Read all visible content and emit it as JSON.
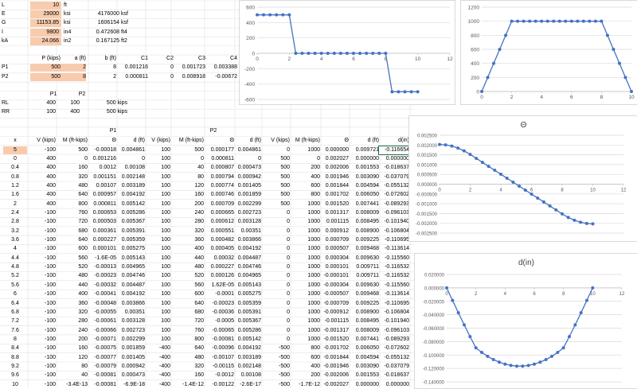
{
  "params": [
    {
      "label": "L",
      "value": "10",
      "unit": "ft",
      "v2": "",
      "u2": "",
      "hl": true
    },
    {
      "label": "E",
      "value": "29000",
      "unit": "ksi",
      "v2": "4176000",
      "u2": "ksf",
      "hl": true
    },
    {
      "label": "G",
      "value": "11153.85",
      "unit": "ksi",
      "v2": "1606154",
      "u2": "ksf",
      "hl": true
    },
    {
      "label": "I",
      "value": "9800",
      "unit": "in4",
      "v2": "0.472608",
      "u2": "ft4",
      "hl": true
    },
    {
      "label": "kA",
      "value": "24.066",
      "unit": "in2",
      "v2": "0.167125",
      "u2": "ft2",
      "hl": true
    }
  ],
  "loads": {
    "headers": [
      "P (kips)",
      "a (ft)",
      "b (ft)",
      "C1",
      "C2",
      "C3",
      "C4"
    ],
    "rows": [
      {
        "label": "P1",
        "cells": [
          "500",
          "2",
          "8",
          "0.001216",
          "0",
          "0.001723",
          "0.003388"
        ]
      },
      {
        "label": "P2",
        "cells": [
          "500",
          "8",
          "2",
          "0.000811",
          "0",
          "0.008918",
          "-0.00672"
        ]
      }
    ]
  },
  "reactions": {
    "headers": [
      "P1",
      "P2"
    ],
    "rows": [
      {
        "label": "RL",
        "cells": [
          "400",
          "100",
          "500 kips"
        ]
      },
      {
        "label": "RR",
        "cells": [
          "100",
          "400",
          "500 kips"
        ]
      }
    ]
  },
  "table": {
    "group_p1": "P1",
    "group_p2": "P2",
    "headers": [
      "x",
      "V (kips)",
      "M (ft-kips)",
      "Θ",
      "d (ft)",
      "V (kips)",
      "M (ft-kips)",
      "Θ",
      "d (ft)",
      "V (kips)",
      "M (ft-kips)",
      "Θ",
      "d (ft)",
      "d(in)"
    ],
    "rows": [
      [
        "5",
        "-100",
        "500",
        "-0.00018",
        "0.004861",
        "100",
        "500",
        "0.000177",
        "0.004861",
        "0",
        "1000",
        "0.000000",
        "0.009721",
        "-0.116654"
      ],
      [
        "0",
        "400",
        "0",
        "0.001216",
        "0",
        "100",
        "0",
        "0.000811",
        "0",
        "500",
        "0",
        "0.002027",
        "0.000000",
        "0.000000"
      ],
      [
        "0.4",
        "400",
        "160",
        "0.0012",
        "0.00108",
        "100",
        "40",
        "0.000807",
        "0.000473",
        "500",
        "200",
        "0.002006",
        "0.001553",
        "-0.018637"
      ],
      [
        "0.8",
        "400",
        "320",
        "0.001151",
        "0.002148",
        "100",
        "80",
        "0.000794",
        "0.000942",
        "500",
        "400",
        "0.001946",
        "0.003090",
        "-0.037079"
      ],
      [
        "1.2",
        "400",
        "480",
        "0.00107",
        "0.003189",
        "100",
        "120",
        "0.000774",
        "0.001405",
        "500",
        "600",
        "0.001844",
        "0.004594",
        "-0.055132"
      ],
      [
        "1.6",
        "400",
        "640",
        "0.000957",
        "0.004192",
        "100",
        "160",
        "0.000746",
        "0.001859",
        "500",
        "800",
        "0.001702",
        "0.006050",
        "-0.072602"
      ],
      [
        "2",
        "400",
        "800",
        "0.000811",
        "0.005142",
        "100",
        "200",
        "0.000709",
        "0.002299",
        "500",
        "1000",
        "0.001520",
        "0.007441",
        "-0.089293"
      ],
      [
        "2.4",
        "-100",
        "760",
        "0.000653",
        "0.005286",
        "100",
        "240",
        "0.000665",
        "0.002723",
        "0",
        "1000",
        "0.001317",
        "0.008009",
        "-0.096103"
      ],
      [
        "2.8",
        "-100",
        "720",
        "0.000503",
        "0.005367",
        "100",
        "280",
        "0.000612",
        "0.003128",
        "0",
        "1000",
        "0.001115",
        "0.008495",
        "-0.101940"
      ],
      [
        "3.2",
        "-100",
        "680",
        "0.000361",
        "0.005391",
        "100",
        "320",
        "0.000551",
        "0.00351",
        "0",
        "1000",
        "0.000912",
        "0.008900",
        "-0.106804"
      ],
      [
        "3.6",
        "-100",
        "640",
        "0.000227",
        "0.005359",
        "100",
        "360",
        "0.000482",
        "0.003866",
        "0",
        "1000",
        "0.000709",
        "0.009225",
        "-0.110695"
      ],
      [
        "4",
        "-100",
        "600",
        "0.000101",
        "0.005275",
        "100",
        "400",
        "0.000405",
        "0.004192",
        "0",
        "1000",
        "0.000507",
        "0.009468",
        "-0.113614"
      ],
      [
        "4.4",
        "-100",
        "560",
        "-1.6E-05",
        "0.005143",
        "100",
        "440",
        "0.00032",
        "0.004487",
        "0",
        "1000",
        "0.000304",
        "0.009630",
        "-0.115560"
      ],
      [
        "4.8",
        "-100",
        "520",
        "-0.00013",
        "0.004965",
        "100",
        "480",
        "0.000227",
        "0.004746",
        "0",
        "1000",
        "0.000101",
        "0.009711",
        "-0.116532"
      ],
      [
        "5.2",
        "-100",
        "480",
        "-0.00023",
        "0.004746",
        "100",
        "520",
        "0.000126",
        "0.004965",
        "0",
        "1000",
        "-0.000101",
        "0.009711",
        "-0.116532"
      ],
      [
        "5.6",
        "-100",
        "440",
        "-0.00032",
        "0.004487",
        "100",
        "560",
        "1.62E-05",
        "0.005143",
        "0",
        "1000",
        "-0.000304",
        "0.009630",
        "-0.115560"
      ],
      [
        "6",
        "-100",
        "400",
        "-0.00041",
        "0.004192",
        "100",
        "600",
        "-0.0001",
        "0.005275",
        "0",
        "1000",
        "-0.000507",
        "0.009468",
        "-0.113614"
      ],
      [
        "6.4",
        "-100",
        "360",
        "-0.00048",
        "0.003866",
        "100",
        "640",
        "-0.00023",
        "0.005359",
        "0",
        "1000",
        "-0.000709",
        "0.009225",
        "-0.110695"
      ],
      [
        "6.8",
        "-100",
        "320",
        "-0.00055",
        "0.00351",
        "100",
        "680",
        "-0.00036",
        "0.005391",
        "0",
        "1000",
        "-0.000912",
        "0.008900",
        "-0.106804"
      ],
      [
        "7.2",
        "-100",
        "280",
        "-0.00061",
        "0.003128",
        "100",
        "720",
        "-0.0005",
        "0.005367",
        "0",
        "1000",
        "-0.001115",
        "0.008495",
        "-0.101940"
      ],
      [
        "7.6",
        "-100",
        "240",
        "-0.00066",
        "0.002723",
        "100",
        "760",
        "-0.00065",
        "0.005286",
        "0",
        "1000",
        "-0.001317",
        "0.008009",
        "-0.096103"
      ],
      [
        "8",
        "-100",
        "200",
        "-0.00071",
        "0.002299",
        "100",
        "800",
        "-0.00081",
        "0.005142",
        "0",
        "1000",
        "-0.001520",
        "0.007441",
        "-0.089293"
      ],
      [
        "8.4",
        "-100",
        "160",
        "-0.00075",
        "0.001859",
        "-400",
        "640",
        "-0.00096",
        "0.004192",
        "-500",
        "800",
        "-0.001702",
        "0.006050",
        "-0.072602"
      ],
      [
        "8.8",
        "-100",
        "120",
        "-0.00077",
        "0.001405",
        "-400",
        "480",
        "-0.00107",
        "0.003189",
        "-500",
        "600",
        "-0.001844",
        "0.004594",
        "-0.055132"
      ],
      [
        "9.2",
        "-100",
        "80",
        "-0.00079",
        "0.000942",
        "-400",
        "320",
        "-0.00115",
        "0.002148",
        "-500",
        "400",
        "-0.001946",
        "0.003090",
        "-0.037079"
      ],
      [
        "9.6",
        "-100",
        "40",
        "-0.00081",
        "0.000473",
        "-400",
        "160",
        "-0.0012",
        "0.00108",
        "-500",
        "200",
        "-0.002006",
        "0.001553",
        "-0.018637"
      ],
      [
        "10",
        "-100",
        "-3.4E-13",
        "-0.00081",
        "-6.9E-18",
        "-400",
        "-1.4E-12",
        "-0.00122",
        "-2.6E-17",
        "-500",
        "-1.7E-12",
        "-0.002027",
        "0.000000",
        "0.000000"
      ]
    ]
  },
  "chart_data": [
    {
      "type": "scatter",
      "title": "",
      "series": [
        {
          "name": "",
          "x": [
            0,
            0.4,
            0.8,
            1.2,
            1.6,
            2,
            2.4,
            2.8,
            3.2,
            3.6,
            4,
            4.4,
            4.8,
            5.2,
            5.6,
            6,
            6.4,
            6.8,
            7.2,
            7.6,
            8,
            8.4,
            8.8,
            9.2,
            9.6,
            10
          ],
          "y": [
            500,
            500,
            500,
            500,
            500,
            500,
            0,
            0,
            0,
            0,
            0,
            0,
            0,
            0,
            0,
            0,
            0,
            0,
            0,
            0,
            0,
            -500,
            -500,
            -500,
            -500,
            -500
          ]
        }
      ],
      "xlim": [
        0,
        12
      ],
      "ylim": [
        -600,
        600
      ],
      "xticks": [
        "0",
        "2",
        "4",
        "6",
        "8",
        "10",
        "12"
      ],
      "yticks": [
        "600",
        "400",
        "200",
        "0",
        "-200",
        "-400",
        "-600"
      ],
      "grid": true,
      "color": "#4472c4"
    },
    {
      "type": "scatter",
      "title": "",
      "series": [
        {
          "name": "",
          "x": [
            0,
            0.4,
            0.8,
            1.2,
            1.6,
            2,
            2.4,
            2.8,
            3.2,
            3.6,
            4,
            4.4,
            4.8,
            5.2,
            5.6,
            6,
            6.4,
            6.8,
            7.2,
            7.6,
            8,
            8.4,
            8.8,
            9.2,
            9.6,
            10
          ],
          "y": [
            0,
            200,
            400,
            600,
            800,
            1000,
            1000,
            1000,
            1000,
            1000,
            1000,
            1000,
            1000,
            1000,
            1000,
            1000,
            1000,
            1000,
            1000,
            1000,
            1000,
            800,
            600,
            400,
            200,
            0
          ]
        }
      ],
      "xlim": [
        0,
        10
      ],
      "ylim": [
        0,
        1200
      ],
      "xticks": [
        "0",
        "2",
        "4",
        "6",
        "8",
        "10"
      ],
      "yticks": [
        "1200",
        "1000",
        "800",
        "600",
        "400",
        "200",
        "0"
      ],
      "grid": true,
      "color": "#4472c4"
    },
    {
      "type": "scatter",
      "title": "Θ",
      "series": [
        {
          "name": "",
          "x": [
            0,
            0.4,
            0.8,
            1.2,
            1.6,
            2,
            2.4,
            2.8,
            3.2,
            3.6,
            4,
            4.4,
            4.8,
            5.2,
            5.6,
            6,
            6.4,
            6.8,
            7.2,
            7.6,
            8,
            8.4,
            8.8,
            9.2,
            9.6,
            10
          ],
          "y": [
            0.002027,
            0.002006,
            0.001946,
            0.001844,
            0.001702,
            0.00152,
            0.001317,
            0.001115,
            0.000912,
            0.000709,
            0.000507,
            0.000304,
            0.000101,
            -0.000101,
            -0.000304,
            -0.000507,
            -0.000709,
            -0.000912,
            -0.001115,
            -0.001317,
            -0.00152,
            -0.001702,
            -0.001844,
            -0.001946,
            -0.002006,
            -0.002027
          ]
        }
      ],
      "xlim": [
        0,
        12
      ],
      "ylim": [
        -0.0025,
        0.0025
      ],
      "xticks": [
        "0",
        "2",
        "4",
        "6",
        "8",
        "10",
        "12"
      ],
      "yticks": [
        "0.002500",
        "0.002000",
        "0.001500",
        "0.001000",
        "0.000500",
        "0.000000",
        "-0.000500",
        "-0.001000",
        "-0.001500",
        "-0.002000",
        "-0.002500"
      ],
      "grid": true,
      "color": "#4472c4"
    },
    {
      "type": "scatter",
      "title": "d(in)",
      "series": [
        {
          "name": "",
          "x": [
            0,
            0.4,
            0.8,
            1.2,
            1.6,
            2,
            2.4,
            2.8,
            3.2,
            3.6,
            4,
            4.4,
            4.8,
            5.2,
            5.6,
            6,
            6.4,
            6.8,
            7.2,
            7.6,
            8,
            8.4,
            8.8,
            9.2,
            9.6,
            10
          ],
          "y": [
            0,
            -0.018637,
            -0.037079,
            -0.055132,
            -0.072602,
            -0.089293,
            -0.096103,
            -0.10194,
            -0.106804,
            -0.110695,
            -0.113614,
            -0.11556,
            -0.116532,
            -0.116532,
            -0.11556,
            -0.113614,
            -0.110695,
            -0.106804,
            -0.10194,
            -0.096103,
            -0.089293,
            -0.072602,
            -0.055132,
            -0.037079,
            -0.018637,
            0
          ]
        }
      ],
      "xlim": [
        0,
        12
      ],
      "ylim": [
        -0.14,
        0.02
      ],
      "xticks": [
        "0",
        "2",
        "4",
        "6",
        "8",
        "10",
        "12"
      ],
      "yticks": [
        "0.020000",
        "0.000000",
        "-0.020000",
        "-0.040000",
        "-0.060000",
        "-0.080000",
        "-0.100000",
        "-0.120000",
        "-0.140000"
      ],
      "grid": true,
      "color": "#4472c4"
    }
  ]
}
